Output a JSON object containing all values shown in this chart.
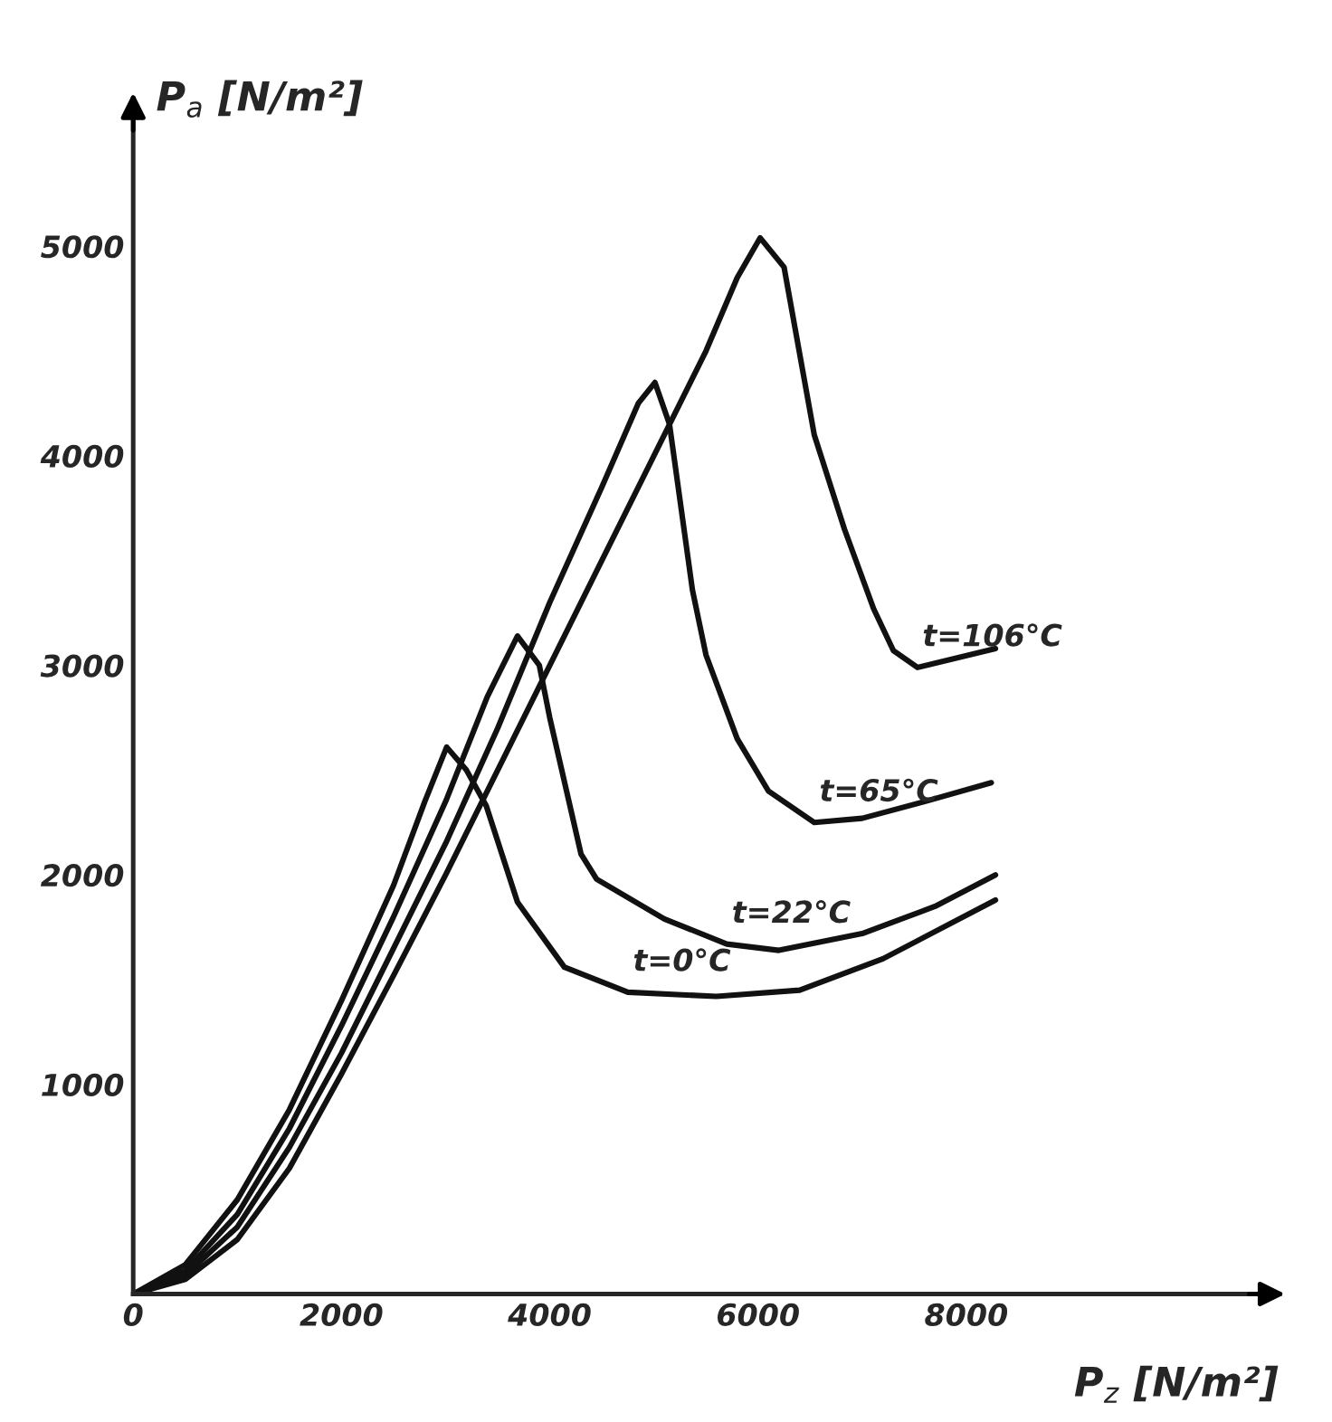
{
  "chart_data": {
    "type": "line",
    "xlabel": "P$_{z}$ [N/m²]",
    "ylabel": "P$_{a}$ [N/m²]",
    "xlim": [
      0,
      11000
    ],
    "ylim": [
      0,
      5700
    ],
    "xticks": [
      {
        "value": 0,
        "label": "0"
      },
      2000,
      4000,
      6000,
      8000
    ],
    "yticks": [
      1000,
      2000,
      3000,
      4000,
      5000
    ],
    "grid": false,
    "line_style": "solid",
    "series": [
      {
        "color": "#111111",
        "x": [
          0,
          500,
          1000,
          1500,
          2000,
          2500,
          2800,
          3010,
          3200,
          3390,
          3690,
          4140,
          4750,
          5600,
          6400,
          7200,
          8280
        ],
        "values": [
          0,
          140,
          450,
          880,
          1400,
          1950,
          2350,
          2610,
          2500,
          2330,
          1870,
          1560,
          1440,
          1420,
          1450,
          1600,
          1880
        ]
      },
      {
        "color": "#111111",
        "x": [
          0,
          500,
          1000,
          1500,
          2000,
          2500,
          3000,
          3400,
          3690,
          3900,
          4000,
          4300,
          4450,
          5100,
          5700,
          6200,
          7000,
          7700,
          8280
        ],
        "values": [
          0,
          110,
          380,
          790,
          1280,
          1800,
          2350,
          2850,
          3140,
          3000,
          2750,
          2100,
          1980,
          1790,
          1670,
          1640,
          1720,
          1850,
          2000
        ]
      },
      {
        "color": "#111111",
        "x": [
          0,
          500,
          1000,
          1500,
          2000,
          2500,
          3000,
          3500,
          4000,
          4500,
          4850,
          5010,
          5150,
          5370,
          5500,
          5800,
          6100,
          6540,
          7000,
          7600,
          8240
        ],
        "values": [
          0,
          90,
          320,
          700,
          1150,
          1650,
          2150,
          2700,
          3300,
          3850,
          4250,
          4350,
          4150,
          3360,
          3050,
          2650,
          2400,
          2250,
          2270,
          2350,
          2440
        ]
      },
      {
        "color": "#111111",
        "x": [
          0,
          500,
          1000,
          1500,
          2000,
          2500,
          3000,
          3500,
          4000,
          4500,
          5000,
          5500,
          5800,
          6020,
          6250,
          6540,
          6830,
          7110,
          7300,
          7530,
          8280
        ],
        "values": [
          0,
          70,
          260,
          600,
          1050,
          1520,
          2000,
          2500,
          3000,
          3500,
          4000,
          4500,
          4850,
          5040,
          4900,
          4100,
          3650,
          3270,
          3070,
          2990,
          3080
        ]
      }
    ],
    "annotations": [
      {
        "text": "t=0°C",
        "x": 4750,
        "y": 1440
      },
      {
        "text": "t=22°C",
        "x": 5700,
        "y": 1670
      },
      {
        "text": "t=65°C",
        "x": 6540,
        "y": 2250
      },
      {
        "text": "t=106°C",
        "x": 7530,
        "y": 2990
      }
    ]
  }
}
